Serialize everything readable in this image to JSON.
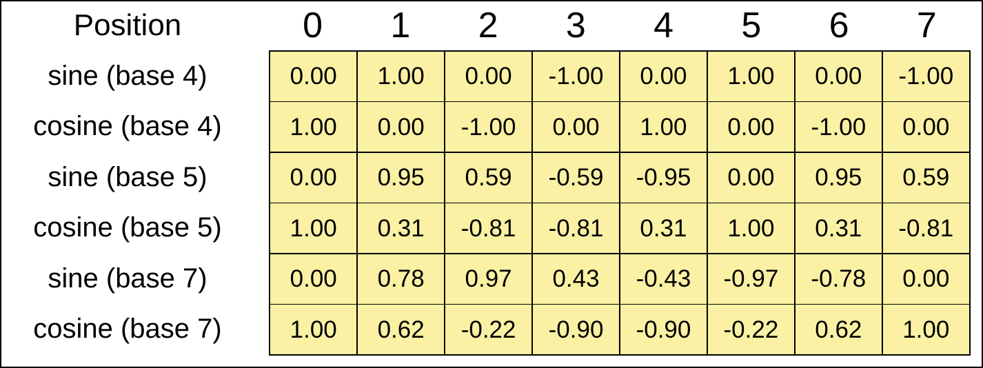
{
  "colors": {
    "cell_fill": "#FAF1A4",
    "grid_border": "#000000",
    "frame_border": "#000000",
    "text": "#000000",
    "background": "#FFFFFF"
  },
  "chart_data": {
    "type": "table",
    "corner_label": "Position",
    "categories": [
      "0",
      "1",
      "2",
      "3",
      "4",
      "5",
      "6",
      "7"
    ],
    "layout_hints": {
      "grid": "on",
      "cell_fill": "#FAF1A4",
      "row_labels_position": "left",
      "column_headers_position": "top"
    },
    "series": [
      {
        "name": "sine (base 4)",
        "values": [
          0.0,
          1.0,
          0.0,
          -1.0,
          0.0,
          1.0,
          0.0,
          -1.0
        ],
        "display": [
          "0.00",
          "1.00",
          "0.00",
          "-1.00",
          "0.00",
          "1.00",
          "0.00",
          "-1.00"
        ]
      },
      {
        "name": "cosine (base 4)",
        "values": [
          1.0,
          0.0,
          -1.0,
          0.0,
          1.0,
          0.0,
          -1.0,
          0.0
        ],
        "display": [
          "1.00",
          "0.00",
          "-1.00",
          "0.00",
          "1.00",
          "0.00",
          "-1.00",
          "0.00"
        ]
      },
      {
        "name": "sine (base 5)",
        "values": [
          0.0,
          0.95,
          0.59,
          -0.59,
          -0.95,
          0.0,
          0.95,
          0.59
        ],
        "display": [
          "0.00",
          "0.95",
          "0.59",
          "-0.59",
          "-0.95",
          "0.00",
          "0.95",
          "0.59"
        ]
      },
      {
        "name": "cosine (base 5)",
        "values": [
          1.0,
          0.31,
          -0.81,
          -0.81,
          0.31,
          1.0,
          0.31,
          -0.81
        ],
        "display": [
          "1.00",
          "0.31",
          "-0.81",
          "-0.81",
          "0.31",
          "1.00",
          "0.31",
          "-0.81"
        ]
      },
      {
        "name": "sine (base 7)",
        "values": [
          0.0,
          0.78,
          0.97,
          0.43,
          -0.43,
          -0.97,
          -0.78,
          0.0
        ],
        "display": [
          "0.00",
          "0.78",
          "0.97",
          "0.43",
          "-0.43",
          "-0.97",
          "-0.78",
          "0.00"
        ]
      },
      {
        "name": "cosine (base 7)",
        "values": [
          1.0,
          0.62,
          -0.22,
          -0.9,
          -0.9,
          -0.22,
          0.62,
          1.0
        ],
        "display": [
          "1.00",
          "0.62",
          "-0.22",
          "-0.90",
          "-0.90",
          "-0.22",
          "0.62",
          "1.00"
        ]
      }
    ]
  }
}
